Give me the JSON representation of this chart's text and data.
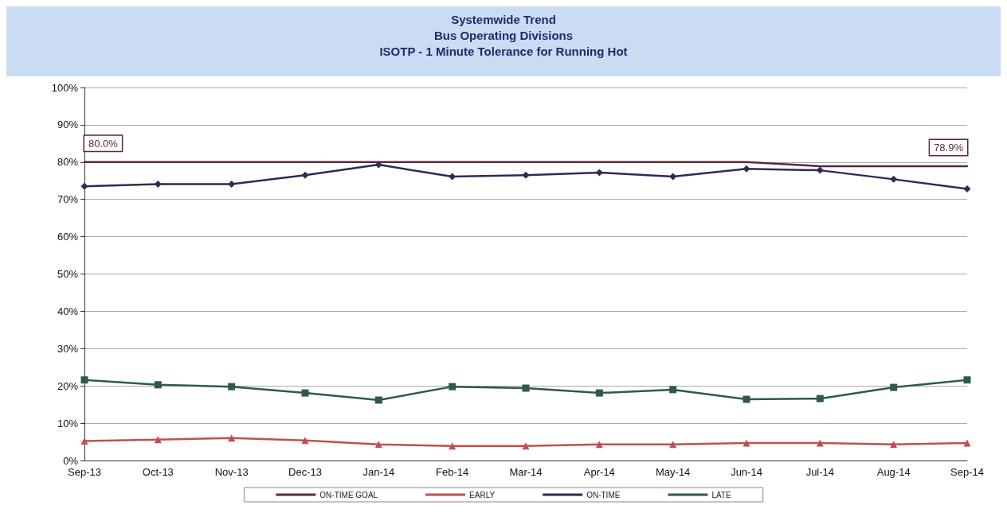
{
  "chart_data": {
    "type": "line",
    "title": "Systemwide Trend",
    "subtitle": "Bus Operating Divisions\nISOTP - 1 Minute Tolerance for Running Hot",
    "categories": [
      "Sep-13",
      "Oct-13",
      "Nov-13",
      "Dec-13",
      "Jan-14",
      "Feb-14",
      "Mar-14",
      "Apr-14",
      "May-14",
      "Jun-14",
      "Jul-14",
      "Aug-14",
      "Sep-14"
    ],
    "series": [
      {
        "name": "ON-TIME GOAL",
        "color": "#5a2a3c",
        "marker": "none",
        "values": [
          80,
          80,
          80,
          80,
          80,
          80,
          80,
          80,
          80,
          80,
          78.9,
          78.9,
          78.9
        ],
        "value_labels": [
          "80.0%",
          null,
          null,
          null,
          null,
          null,
          null,
          null,
          null,
          null,
          null,
          null,
          "78.9%"
        ]
      },
      {
        "name": "EARLY",
        "color": "#c0504d",
        "marker": "triangle",
        "values": [
          5.2,
          5.6,
          6.0,
          5.4,
          4.3,
          3.9,
          3.9,
          4.3,
          4.3,
          4.7,
          4.7,
          4.3,
          4.7
        ]
      },
      {
        "name": "ON-TIME",
        "color": "#2e2a5a",
        "marker": "diamond",
        "values": [
          73.5,
          74.1,
          74.1,
          76.5,
          79.3,
          76.1,
          76.5,
          77.2,
          76.1,
          78.2,
          77.8,
          75.4,
          72.8
        ]
      },
      {
        "name": "LATE",
        "color": "#2f5a4a",
        "marker": "square",
        "values": [
          21.6,
          20.3,
          19.8,
          18.1,
          16.2,
          19.8,
          19.4,
          18.1,
          19.0,
          16.4,
          16.6,
          19.6,
          21.6
        ]
      }
    ],
    "ylim": [
      0,
      100
    ],
    "yticks": [
      {
        "value": 0,
        "label": "0%"
      },
      {
        "value": 10,
        "label": "10%"
      },
      {
        "value": 20,
        "label": "20%"
      },
      {
        "value": 30,
        "label": "30%"
      },
      {
        "value": 40,
        "label": "40%"
      },
      {
        "value": 50,
        "label": "50%"
      },
      {
        "value": 60,
        "label": "60%"
      },
      {
        "value": 70,
        "label": "70%"
      },
      {
        "value": 80,
        "label": "80%"
      },
      {
        "value": 90,
        "label": "90%"
      },
      {
        "value": 100,
        "label": "100%"
      }
    ],
    "grid": "y",
    "legend": "bottom",
    "line_style": "solid"
  }
}
